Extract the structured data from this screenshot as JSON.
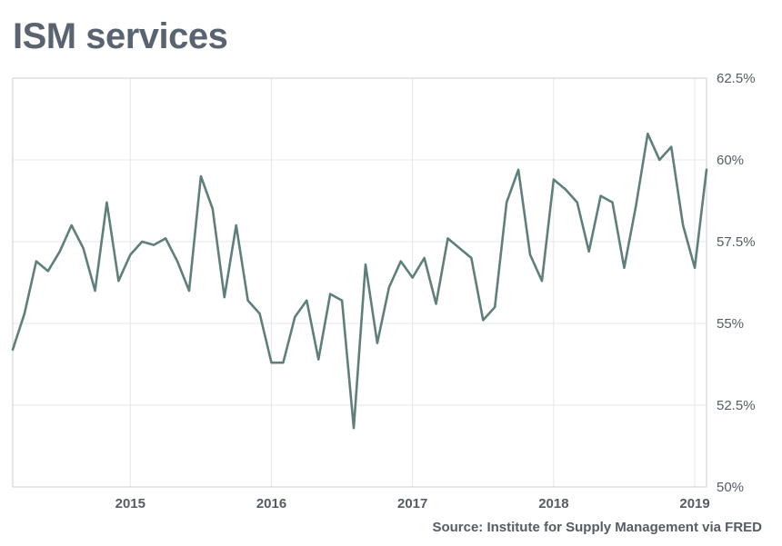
{
  "chart_data": {
    "type": "line",
    "title": "ISM services",
    "source": "Source: Institute for Supply Management via FRED",
    "xlabel": "",
    "ylabel": "",
    "x_range": [
      "2014-03",
      "2019-02"
    ],
    "ylim": [
      50,
      62.5
    ],
    "y_ticks": [
      {
        "value": 50,
        "label": "50%"
      },
      {
        "value": 52.5,
        "label": "52.5%"
      },
      {
        "value": 55,
        "label": "55%"
      },
      {
        "value": 57.5,
        "label": "57.5%"
      },
      {
        "value": 60,
        "label": "60%"
      },
      {
        "value": 62.5,
        "label": "62.5%"
      }
    ],
    "x_ticks": [
      {
        "date": "2015-01",
        "label": "2015"
      },
      {
        "date": "2016-01",
        "label": "2016"
      },
      {
        "date": "2017-01",
        "label": "2017"
      },
      {
        "date": "2018-01",
        "label": "2018"
      },
      {
        "date": "2019-01",
        "label": "2019"
      }
    ],
    "grid": true,
    "line_color": "#5f7f7a",
    "series": [
      {
        "x": [
          "2014-03",
          "2014-04",
          "2014-05",
          "2014-06",
          "2014-07",
          "2014-08",
          "2014-09",
          "2014-10",
          "2014-11",
          "2014-12",
          "2015-01",
          "2015-02",
          "2015-03",
          "2015-04",
          "2015-05",
          "2015-06",
          "2015-07",
          "2015-08",
          "2015-09",
          "2015-10",
          "2015-11",
          "2015-12",
          "2016-01",
          "2016-02",
          "2016-03",
          "2016-04",
          "2016-05",
          "2016-06",
          "2016-07",
          "2016-08",
          "2016-09",
          "2016-10",
          "2016-11",
          "2016-12",
          "2017-01",
          "2017-02",
          "2017-03",
          "2017-04",
          "2017-05",
          "2017-06",
          "2017-07",
          "2017-08",
          "2017-09",
          "2017-10",
          "2017-11",
          "2017-12",
          "2018-01",
          "2018-02",
          "2018-03",
          "2018-04",
          "2018-05",
          "2018-06",
          "2018-07",
          "2018-08",
          "2018-09",
          "2018-10",
          "2018-11",
          "2018-12",
          "2019-01",
          "2019-02"
        ],
        "values": [
          54.2,
          55.3,
          56.9,
          56.6,
          57.2,
          58.0,
          57.3,
          56.0,
          58.7,
          56.3,
          57.1,
          57.5,
          57.4,
          57.6,
          56.9,
          56.0,
          59.5,
          58.5,
          55.8,
          58.0,
          55.7,
          55.3,
          53.8,
          53.8,
          55.2,
          55.7,
          53.9,
          55.9,
          55.7,
          51.8,
          56.8,
          54.4,
          56.1,
          56.9,
          56.4,
          57.0,
          55.6,
          57.6,
          57.3,
          57.0,
          55.1,
          55.5,
          58.7,
          59.7,
          57.1,
          56.3,
          59.4,
          59.1,
          58.7,
          57.2,
          58.9,
          58.7,
          56.7,
          58.6,
          60.8,
          60.0,
          60.4,
          58.0,
          56.7,
          59.7
        ]
      }
    ]
  }
}
